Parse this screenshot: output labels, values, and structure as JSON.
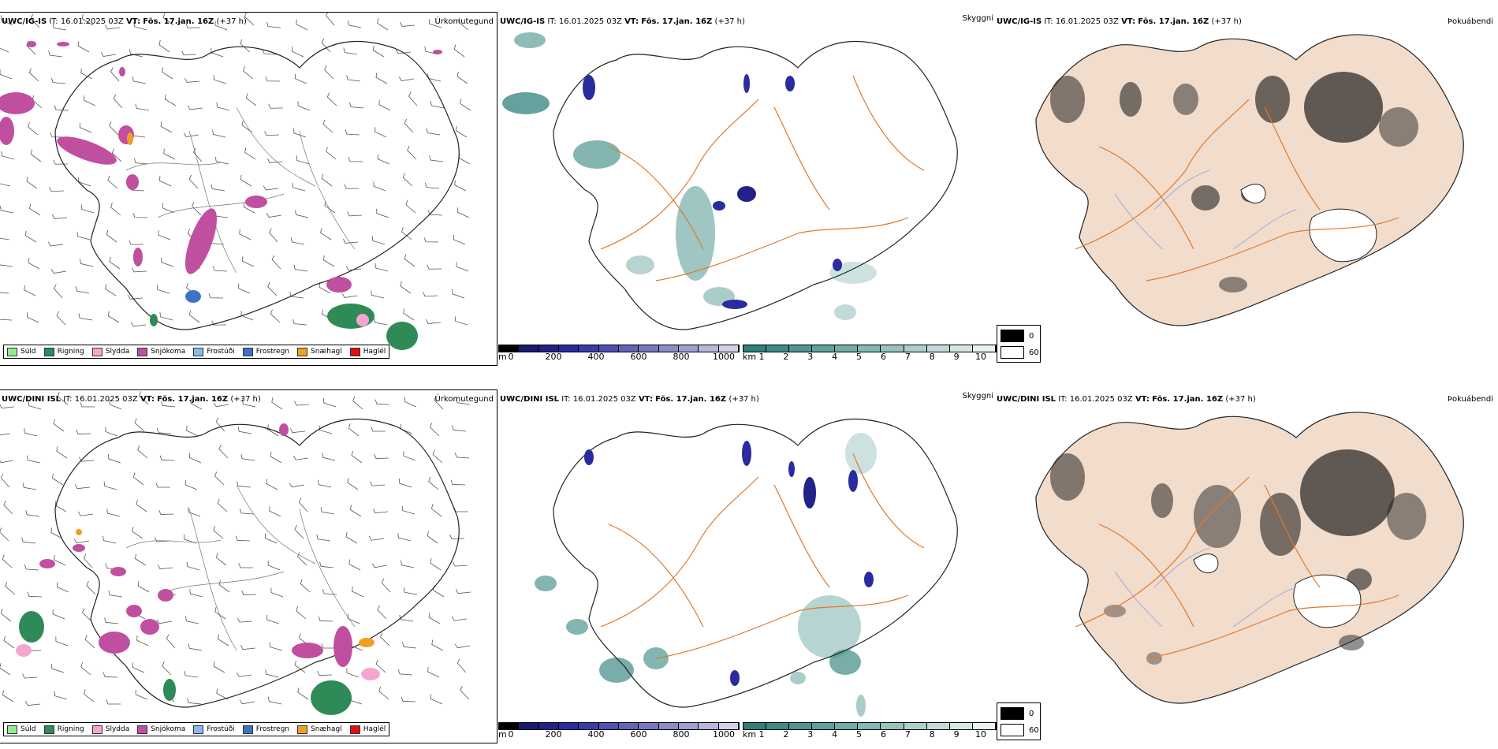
{
  "rows": [
    {
      "model": "UWC/IG-IS",
      "it_label": "IT:",
      "it_value": "16.01.2025 03Z",
      "vt_label": "VT:",
      "vt_value": "Fös. 17.jan. 16Z",
      "lead": "(+37 h)"
    },
    {
      "model": "UWC/DINI ISL",
      "it_label": "IT:",
      "it_value": "16.01.2025 03Z",
      "vt_label": "VT:",
      "vt_value": "Fös. 17.jan. 16Z",
      "lead": "(+37 h)"
    }
  ],
  "fields": {
    "precip": "Úrkomutegund",
    "visibility": "Skyggni",
    "fog": "Þokuábendi"
  },
  "precip_legend": [
    {
      "label": "Súld",
      "color": "#90ee90"
    },
    {
      "label": "Rigning",
      "color": "#2e8b57"
    },
    {
      "label": "Slydda",
      "color": "#f4a6cf"
    },
    {
      "label": "Snjókoma",
      "color": "#c04fa0"
    },
    {
      "label": "Frostúði",
      "color": "#8ab8ee"
    },
    {
      "label": "Frostregn",
      "color": "#3a74c4"
    },
    {
      "label": "Snæhagl",
      "color": "#f0a020"
    },
    {
      "label": "Haglél",
      "color": "#e01010"
    }
  ],
  "cloudbase_bar": {
    "unit": "m",
    "ticks": [
      "0",
      "200",
      "400",
      "600",
      "800",
      "1000"
    ],
    "colors": [
      "#000000",
      "#1a1a6e",
      "#222288",
      "#2b2ba0",
      "#3a3aa8",
      "#5050b0",
      "#6464b8",
      "#7878c0",
      "#8c8cc8",
      "#a0a0d0",
      "#b8b8dc",
      "#d0d0e8"
    ]
  },
  "visibility_bar": {
    "unit": "km",
    "ticks": [
      "1",
      "2",
      "3",
      "4",
      "5",
      "6",
      "7",
      "8",
      "9",
      "10"
    ],
    "colors": [
      "#2f7f7a",
      "#3f8a85",
      "#4f9590",
      "#60a09b",
      "#72aba7",
      "#85b7b3",
      "#98c3bf",
      "#accfcc",
      "#c0dbd9",
      "#d5e7e5",
      "#eaf3f2"
    ]
  },
  "fog_legend": [
    {
      "label": "0",
      "color": "#000000"
    },
    {
      "label": "60",
      "color": "#ffffff"
    }
  ],
  "colors": {
    "land_fog": "#f2dccb",
    "roads": "#e0782a",
    "rivers": "#8aa0e8",
    "coast": "#111111"
  }
}
